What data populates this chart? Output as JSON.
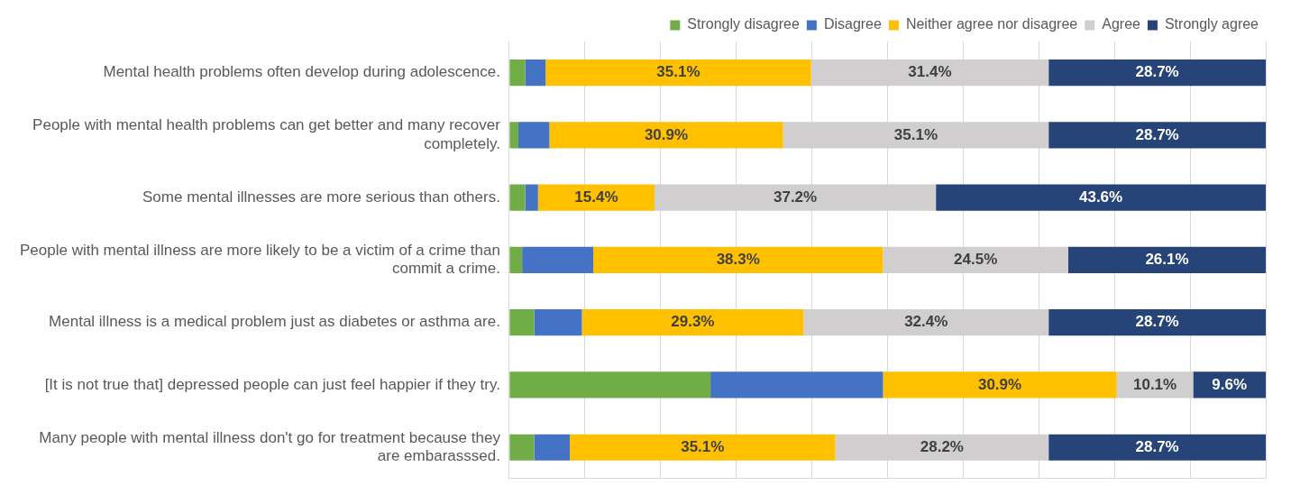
{
  "chart_data": {
    "type": "bar",
    "orientation": "horizontal",
    "stacked": true,
    "categories": [
      "Mental health problems often develop during adolescence.",
      "People with mental health problems can get better and many recover completely.",
      "Some mental illnesses are more serious than others.",
      "People with mental illness are more likely to be a victim of a crime than commit a crime.",
      "Mental illness is a medical problem just as diabetes or asthma are.",
      "[It is not true that] depressed people can just feel happier if they try.",
      "Many people with mental illness don't go for treatment because they are embarasssed."
    ],
    "series": [
      {
        "name": "Strongly disagree",
        "color": "#70ad47",
        "values": [
          2.1,
          1.2,
          2.1,
          1.7,
          3.3,
          26.6,
          3.3
        ]
      },
      {
        "name": "Disagree",
        "color": "#4472c4",
        "values": [
          2.7,
          4.1,
          1.7,
          9.4,
          6.3,
          22.8,
          4.7
        ]
      },
      {
        "name": "Neither agree nor disagree",
        "color": "#ffc000",
        "values": [
          35.1,
          30.9,
          15.4,
          38.3,
          29.3,
          30.9,
          35.1
        ],
        "value_labels": [
          "35.1%",
          "30.9%",
          "15.4%",
          "38.3%",
          "29.3%",
          "30.9%",
          "35.1%"
        ]
      },
      {
        "name": "Agree",
        "color": "#d0cece",
        "values": [
          31.4,
          35.1,
          37.2,
          24.5,
          32.4,
          10.1,
          28.2
        ],
        "value_labels": [
          "31.4%",
          "35.1%",
          "37.2%",
          "24.5%",
          "32.4%",
          "10.1%",
          "28.2%"
        ]
      },
      {
        "name": "Strongly agree",
        "color": "#264478",
        "values": [
          28.7,
          28.7,
          43.6,
          26.1,
          28.7,
          9.6,
          28.7
        ],
        "value_labels": [
          "28.7%",
          "28.7%",
          "43.6%",
          "26.1%",
          "28.7%",
          "9.6%",
          "28.7%"
        ]
      }
    ],
    "tick_labels": "y",
    "grid": "x",
    "legend": "top right"
  }
}
